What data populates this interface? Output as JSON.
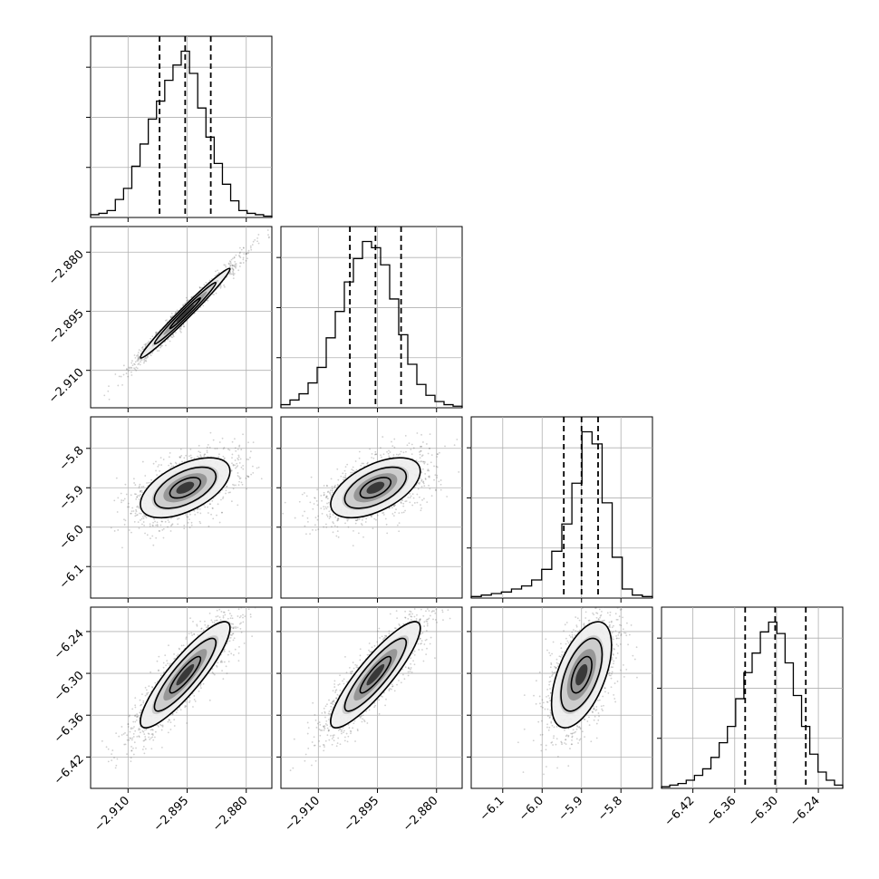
{
  "chart_data": {
    "type": "corner",
    "title": "",
    "colors": {
      "ink": "#000000",
      "grid": "#b0b0b0",
      "points": "#555555",
      "density_fill": "#808080"
    },
    "grid": true,
    "parameters": [
      {
        "range": [
          -2.9195,
          -2.8735
        ],
        "ticks": [
          -2.91,
          -2.895,
          -2.88
        ],
        "tick_labels": [
          "−2.910",
          "−2.895",
          "−2.880"
        ],
        "quantiles": [
          -2.902,
          -2.8955,
          -2.889
        ],
        "histogram": [
          0.02,
          0.03,
          0.05,
          0.13,
          0.21,
          0.37,
          0.53,
          0.71,
          0.84,
          0.99,
          1.1,
          1.2,
          1.04,
          0.79,
          0.58,
          0.39,
          0.24,
          0.12,
          0.05,
          0.03,
          0.02,
          0.01
        ]
      },
      {
        "range": [
          -2.9195,
          -2.8735
        ],
        "ticks": [
          -2.91,
          -2.895,
          -2.88
        ],
        "tick_labels": [
          "−2.910",
          "−2.895",
          "−2.880"
        ],
        "quantiles": [
          -2.902,
          -2.8955,
          -2.889
        ],
        "histogram": [
          0.02,
          0.05,
          0.09,
          0.16,
          0.26,
          0.45,
          0.62,
          0.81,
          0.96,
          1.07,
          1.03,
          0.92,
          0.7,
          0.47,
          0.28,
          0.15,
          0.08,
          0.04,
          0.02,
          0.01
        ]
      },
      {
        "range": [
          -6.18,
          -5.72
        ],
        "ticks": [
          -6.1,
          -6.0,
          -5.9,
          -5.8
        ],
        "tick_labels": [
          "−6.1",
          "−6.0",
          "−5.9",
          "−5.8"
        ],
        "quantiles": [
          -5.945,
          -5.9,
          -5.858
        ],
        "histogram": [
          0.01,
          0.02,
          0.03,
          0.04,
          0.06,
          0.08,
          0.12,
          0.19,
          0.31,
          0.49,
          0.76,
          1.1,
          1.02,
          0.63,
          0.27,
          0.06,
          0.02,
          0.01
        ]
      },
      {
        "range": [
          -6.465,
          -6.205
        ],
        "ticks": [
          -6.42,
          -6.36,
          -6.3,
          -6.24
        ],
        "tick_labels": [
          "−6.42",
          "−6.36",
          "−6.30",
          "−6.24"
        ],
        "quantiles": [
          -6.345,
          -6.302,
          -6.258
        ],
        "histogram": [
          0.01,
          0.02,
          0.03,
          0.05,
          0.08,
          0.12,
          0.19,
          0.28,
          0.38,
          0.55,
          0.71,
          0.83,
          0.96,
          1.02,
          0.95,
          0.77,
          0.57,
          0.38,
          0.21,
          0.1,
          0.05,
          0.02
        ]
      }
    ],
    "pairs": [
      {
        "x": 0,
        "y": 1,
        "rho": 0.985
      },
      {
        "x": 0,
        "y": 2,
        "rho": 0.55
      },
      {
        "x": 1,
        "y": 2,
        "rho": 0.55
      },
      {
        "x": 0,
        "y": 3,
        "rho": 0.88
      },
      {
        "x": 1,
        "y": 3,
        "rho": 0.88
      },
      {
        "x": 2,
        "y": 3,
        "rho": 0.55
      }
    ],
    "contour_levels": [
      "0.39",
      "0.86",
      "1.39"
    ]
  }
}
